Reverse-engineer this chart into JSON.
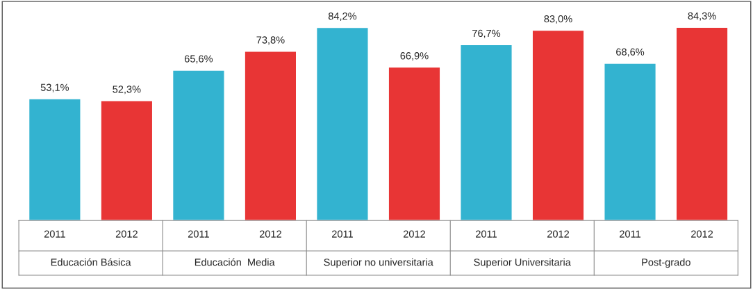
{
  "chart_data": {
    "type": "bar",
    "categories": [
      "2011",
      "2012",
      "2011",
      "2012",
      "2011",
      "2012",
      "2011",
      "2012",
      "2011",
      "2012"
    ],
    "values": [
      53.1,
      52.3,
      65.6,
      73.8,
      84.2,
      66.9,
      76.7,
      83.0,
      68.6,
      84.3
    ],
    "value_labels": [
      "53,1%",
      "52,3%",
      "65,6%",
      "73,8%",
      "84,2%",
      "66,9%",
      "76,7%",
      "83,0%",
      "68,6%",
      "84,3%"
    ],
    "colors": [
      "#33b3d0",
      "#e83535",
      "#33b3d0",
      "#e83535",
      "#33b3d0",
      "#e83535",
      "#33b3d0",
      "#e83535",
      "#33b3d0",
      "#e83535"
    ],
    "annotations": [
      "Educación Básica",
      "Educación  Media",
      "Superior no universitaria",
      "Superior Universitaria",
      "Post-grado"
    ],
    "grid": false,
    "legend": false
  }
}
